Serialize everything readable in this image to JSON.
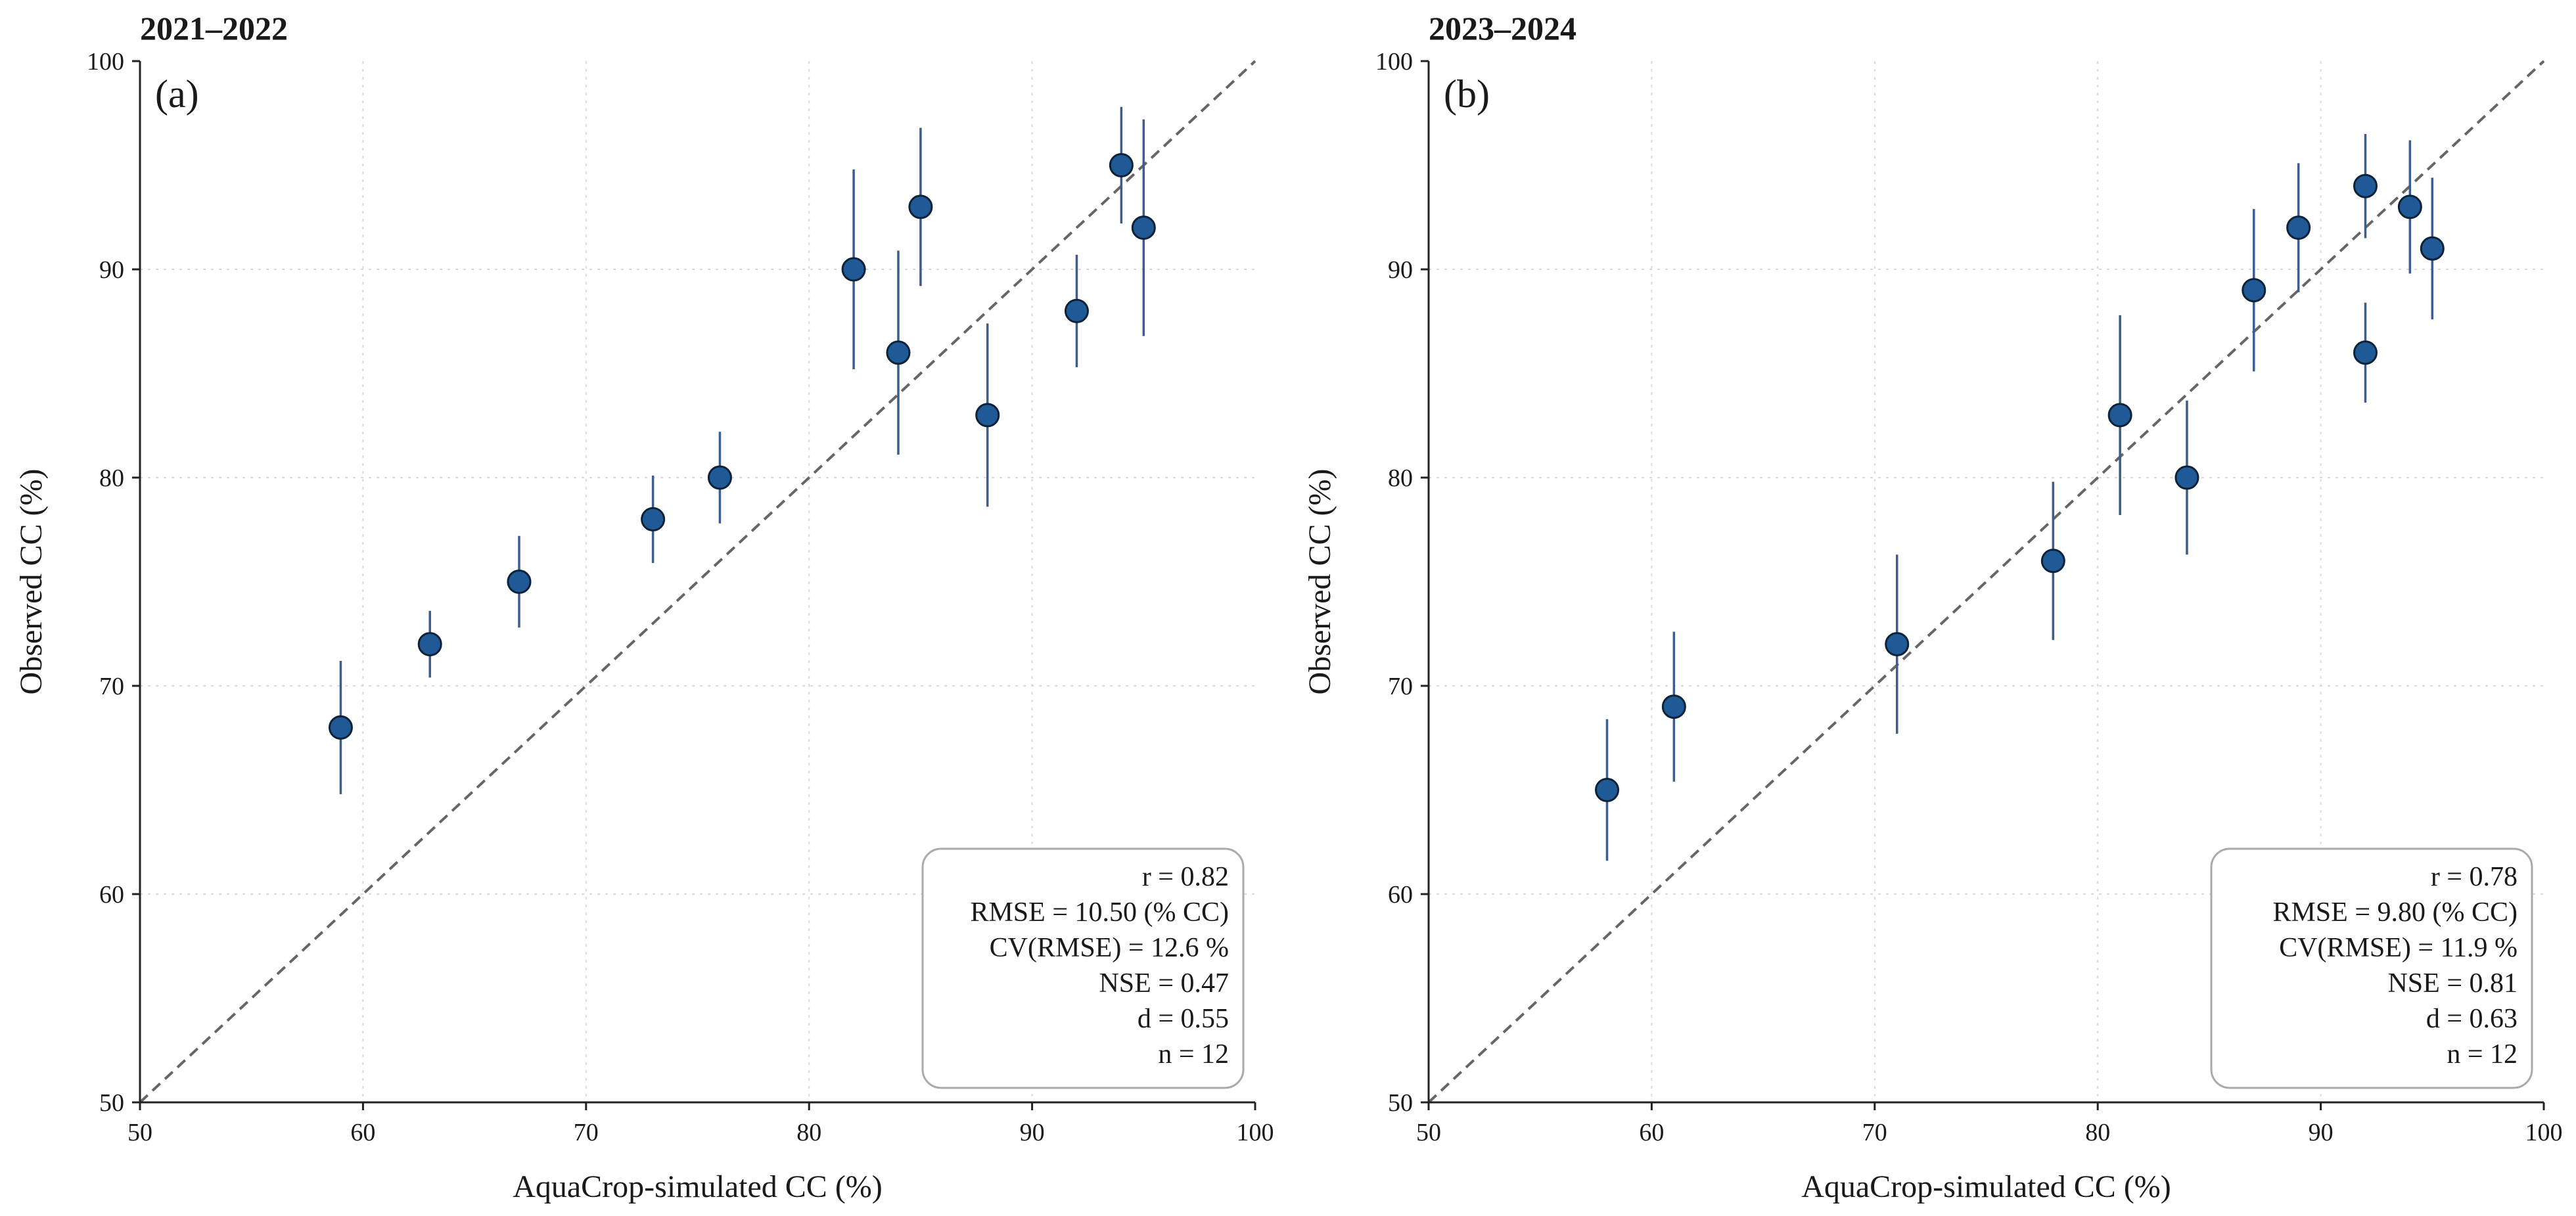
{
  "chart_data": [
    {
      "type": "scatter",
      "title": "2021–2022",
      "panel": "(a)",
      "xlabel": "AquaCrop-simulated CC (%)",
      "ylabel": "Observed CC (%)",
      "xlim": [
        50,
        100
      ],
      "ylim": [
        50,
        100
      ],
      "xticks": [
        "50",
        "60",
        "70",
        "80",
        "90",
        "100"
      ],
      "yticks": [
        "50",
        "60",
        "70",
        "80",
        "90",
        "100"
      ],
      "grid": true,
      "reference_line": "1:1",
      "points": [
        {
          "x": 59,
          "y": 68,
          "err": 3.2
        },
        {
          "x": 63,
          "y": 72,
          "err": 1.6
        },
        {
          "x": 67,
          "y": 75,
          "err": 2.2
        },
        {
          "x": 73,
          "y": 78,
          "err": 2.1
        },
        {
          "x": 76,
          "y": 80,
          "err": 2.2
        },
        {
          "x": 82,
          "y": 90,
          "err": 4.8
        },
        {
          "x": 84,
          "y": 86,
          "err": 4.9
        },
        {
          "x": 85,
          "y": 93,
          "err": 3.8
        },
        {
          "x": 88,
          "y": 83,
          "err": 4.4
        },
        {
          "x": 92,
          "y": 88,
          "err": 2.7
        },
        {
          "x": 94,
          "y": 95,
          "err": 2.8
        },
        {
          "x": 95,
          "y": 92,
          "err": 5.2
        }
      ],
      "stats_position": "bottom-right",
      "stats": [
        "r = 0.82",
        "RMSE = 10.50 (% CC)",
        "CV(RMSE) = 12.6 %",
        "NSE = 0.47",
        "d = 0.55",
        "n = 12"
      ]
    },
    {
      "type": "scatter",
      "title": "2023–2024",
      "panel": "(b)",
      "xlabel": "AquaCrop-simulated CC (%)",
      "ylabel": "Observed CC (%)",
      "xlim": [
        50,
        100
      ],
      "ylim": [
        50,
        100
      ],
      "xticks": [
        "50",
        "60",
        "70",
        "80",
        "90",
        "100"
      ],
      "yticks": [
        "50",
        "60",
        "70",
        "80",
        "90",
        "100"
      ],
      "grid": true,
      "reference_line": "1:1",
      "points": [
        {
          "x": 58,
          "y": 65,
          "err": 3.4
        },
        {
          "x": 61,
          "y": 69,
          "err": 3.6
        },
        {
          "x": 71,
          "y": 72,
          "err": 4.3
        },
        {
          "x": 78,
          "y": 76,
          "err": 3.8
        },
        {
          "x": 81,
          "y": 83,
          "err": 4.8
        },
        {
          "x": 84,
          "y": 80,
          "err": 3.7
        },
        {
          "x": 87,
          "y": 89,
          "err": 3.9
        },
        {
          "x": 89,
          "y": 92,
          "err": 3.1
        },
        {
          "x": 92,
          "y": 94,
          "err": 2.5
        },
        {
          "x": 92,
          "y": 86,
          "err": 2.4
        },
        {
          "x": 94,
          "y": 93,
          "err": 3.2
        },
        {
          "x": 95,
          "y": 91,
          "err": 3.4
        }
      ],
      "stats_position": "bottom-right",
      "stats": [
        "r = 0.78",
        "RMSE = 9.80 (% CC)",
        "CV(RMSE) = 11.9 %",
        "NSE = 0.81",
        "d = 0.63",
        "n = 12"
      ]
    }
  ],
  "colors": {
    "marker_fill": "#1f5a96",
    "marker_edge": "#0d2238",
    "errorbar": "#3d5d8f",
    "reference_line": "#666666",
    "grid": "#d9d9d9",
    "axis": "#222222",
    "stats_box_edge": "#aaaaaa"
  }
}
